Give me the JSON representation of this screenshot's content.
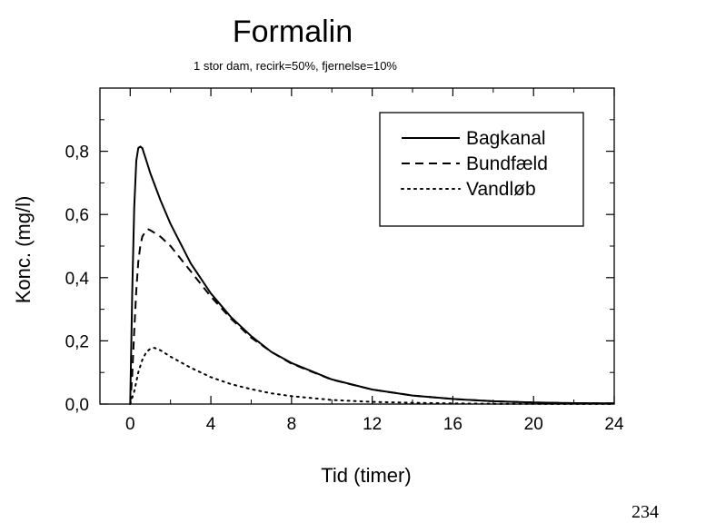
{
  "page_number": "234",
  "chart_data": {
    "type": "line",
    "title": "Formalin",
    "subtitle": "1 stor dam, recirk=50%, fjernelse=10%",
    "xlabel": "Tid (timer)",
    "ylabel": "Konc. (mg/l)",
    "xlim": [
      -1.5,
      24
    ],
    "ylim": [
      0,
      1.0
    ],
    "x_ticks": [
      0,
      4,
      8,
      12,
      16,
      20,
      24
    ],
    "x_tick_labels": [
      "0",
      "4",
      "8",
      "12",
      "16",
      "20",
      "24"
    ],
    "y_ticks": [
      0.0,
      0.2,
      0.4,
      0.6,
      0.8
    ],
    "y_tick_labels": [
      "0,0",
      "0,2",
      "0,4",
      "0,6",
      "0,8"
    ],
    "grid": false,
    "legend_position": "top-right",
    "series": [
      {
        "name": "Bagkanal",
        "style": "solid",
        "x": [
          0,
          0.1,
          0.2,
          0.3,
          0.4,
          0.5,
          0.6,
          0.8,
          1,
          1.5,
          2,
          3,
          4,
          5,
          6,
          7,
          8,
          10,
          12,
          14,
          16,
          18,
          20,
          22,
          24
        ],
        "y": [
          0,
          0.35,
          0.62,
          0.77,
          0.81,
          0.815,
          0.81,
          0.77,
          0.73,
          0.645,
          0.57,
          0.445,
          0.35,
          0.275,
          0.215,
          0.165,
          0.13,
          0.078,
          0.046,
          0.027,
          0.016,
          0.009,
          0.005,
          0.003,
          0.002
        ]
      },
      {
        "name": "Bundfæld",
        "style": "dashed",
        "x": [
          0,
          0.1,
          0.2,
          0.3,
          0.4,
          0.5,
          0.6,
          0.8,
          0.9,
          1,
          1.5,
          2,
          3,
          4,
          5,
          6,
          7,
          8,
          10,
          12,
          14,
          16,
          18,
          20,
          22,
          24
        ],
        "y": [
          0,
          0.09,
          0.23,
          0.36,
          0.45,
          0.5,
          0.53,
          0.55,
          0.553,
          0.55,
          0.53,
          0.5,
          0.42,
          0.34,
          0.27,
          0.21,
          0.165,
          0.128,
          0.077,
          0.046,
          0.027,
          0.016,
          0.009,
          0.005,
          0.003,
          0.002
        ]
      },
      {
        "name": "Vandløb",
        "style": "dotted",
        "x": [
          0,
          0.2,
          0.4,
          0.6,
          0.8,
          1,
          1.2,
          1.5,
          2,
          3,
          4,
          5,
          6,
          7,
          8,
          10,
          12,
          14,
          16,
          18,
          20,
          22,
          24
        ],
        "y": [
          0,
          0.04,
          0.1,
          0.14,
          0.165,
          0.175,
          0.178,
          0.17,
          0.15,
          0.115,
          0.085,
          0.063,
          0.047,
          0.034,
          0.025,
          0.013,
          0.007,
          0.004,
          0.002,
          0.001,
          0.0005,
          0.0003,
          0.0002
        ]
      }
    ]
  }
}
